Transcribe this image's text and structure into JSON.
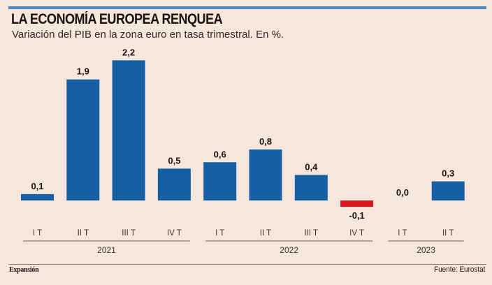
{
  "header": {
    "title": "LA ECONOMÍA EUROPEA RENQUEA",
    "subtitle": "Variación del PIB en la zona euro en tasa trimestral. En %."
  },
  "footer": {
    "brand": "Expansión",
    "source": "Fuente: Eurostat"
  },
  "colors": {
    "positive": "#1560a5",
    "negative": "#d7191f",
    "accent_rule": "#4b88c4",
    "background": "#f6e6db"
  },
  "chart_data": {
    "type": "bar",
    "title": "LA ECONOMÍA EUROPEA RENQUEA",
    "subtitle": "Variación del PIB en la zona euro en tasa trimestral. En %.",
    "xlabel": "",
    "ylabel": "",
    "ylim": [
      -0.1,
      2.2
    ],
    "grid": false,
    "legend": "none",
    "categories": [
      "I T",
      "II T",
      "III T",
      "IV T",
      "I T",
      "II T",
      "III T",
      "IV T",
      "I T",
      "II T"
    ],
    "values": [
      0.1,
      1.9,
      2.2,
      0.5,
      0.6,
      0.8,
      0.4,
      -0.1,
      0.0,
      0.3
    ],
    "value_labels": [
      "0,1",
      "1,9",
      "2,2",
      "0,5",
      "0,6",
      "0,8",
      "0,4",
      "-0,1",
      "0,0",
      "0,3"
    ],
    "groups": [
      {
        "label": "2021",
        "count": 4
      },
      {
        "label": "2022",
        "count": 4
      },
      {
        "label": "2023",
        "count": 2
      }
    ]
  }
}
